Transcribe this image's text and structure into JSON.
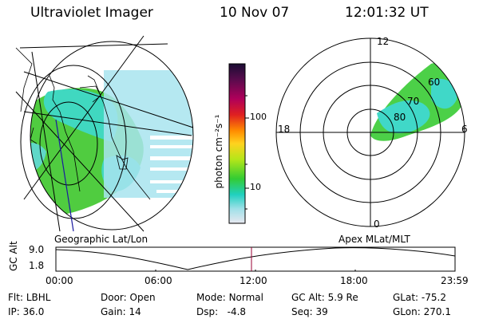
{
  "header": {
    "title": "Ultraviolet Imager",
    "date": "10 Nov 07",
    "time": "12:01:32 UT"
  },
  "left_panel": {
    "label": "Geographic Lat/Lon"
  },
  "right_panel": {
    "label": "Apex  MLat/MLT",
    "clock_labels": {
      "top": "12",
      "bottom": "0",
      "left": "18",
      "right": "6"
    },
    "lat_labels": [
      "60",
      "70",
      "80"
    ]
  },
  "colorbar": {
    "axis_label": "photon cm⁻²s⁻¹",
    "ticks": [
      "100",
      "10"
    ],
    "colors": [
      "#1a0d33",
      "#5a0b4d",
      "#b0005a",
      "#e02020",
      "#ff8c00",
      "#ffd21f",
      "#b4e619",
      "#33cc33",
      "#20d0c0",
      "#a0e0e8",
      "#e8e8f0"
    ]
  },
  "altitude_plot": {
    "ylabel": "GC Alt",
    "y_ticks": [
      "9.0",
      "1.8"
    ],
    "x_ticks": [
      "00:00",
      "06:00",
      "12:00",
      "18:00",
      "23:59"
    ],
    "current_time_marker_color": "#990033"
  },
  "footer": {
    "row1": [
      {
        "label": "Flt:",
        "value": "LBHL"
      },
      {
        "label": "Door:",
        "value": "Open"
      },
      {
        "label": "Mode:",
        "value": "Normal"
      },
      {
        "label": "GC Alt:",
        "value": "5.9 Re"
      },
      {
        "label": "GLat:",
        "value": "-75.2"
      }
    ],
    "row2": [
      {
        "label": "IP:",
        "value": "36.0"
      },
      {
        "label": "Gain:",
        "value": "14"
      },
      {
        "label": "Dsp:",
        "value": "-4.8"
      },
      {
        "label": "Seq:",
        "value": "39"
      },
      {
        "label": "GLon:",
        "value": "270.1"
      }
    ]
  }
}
